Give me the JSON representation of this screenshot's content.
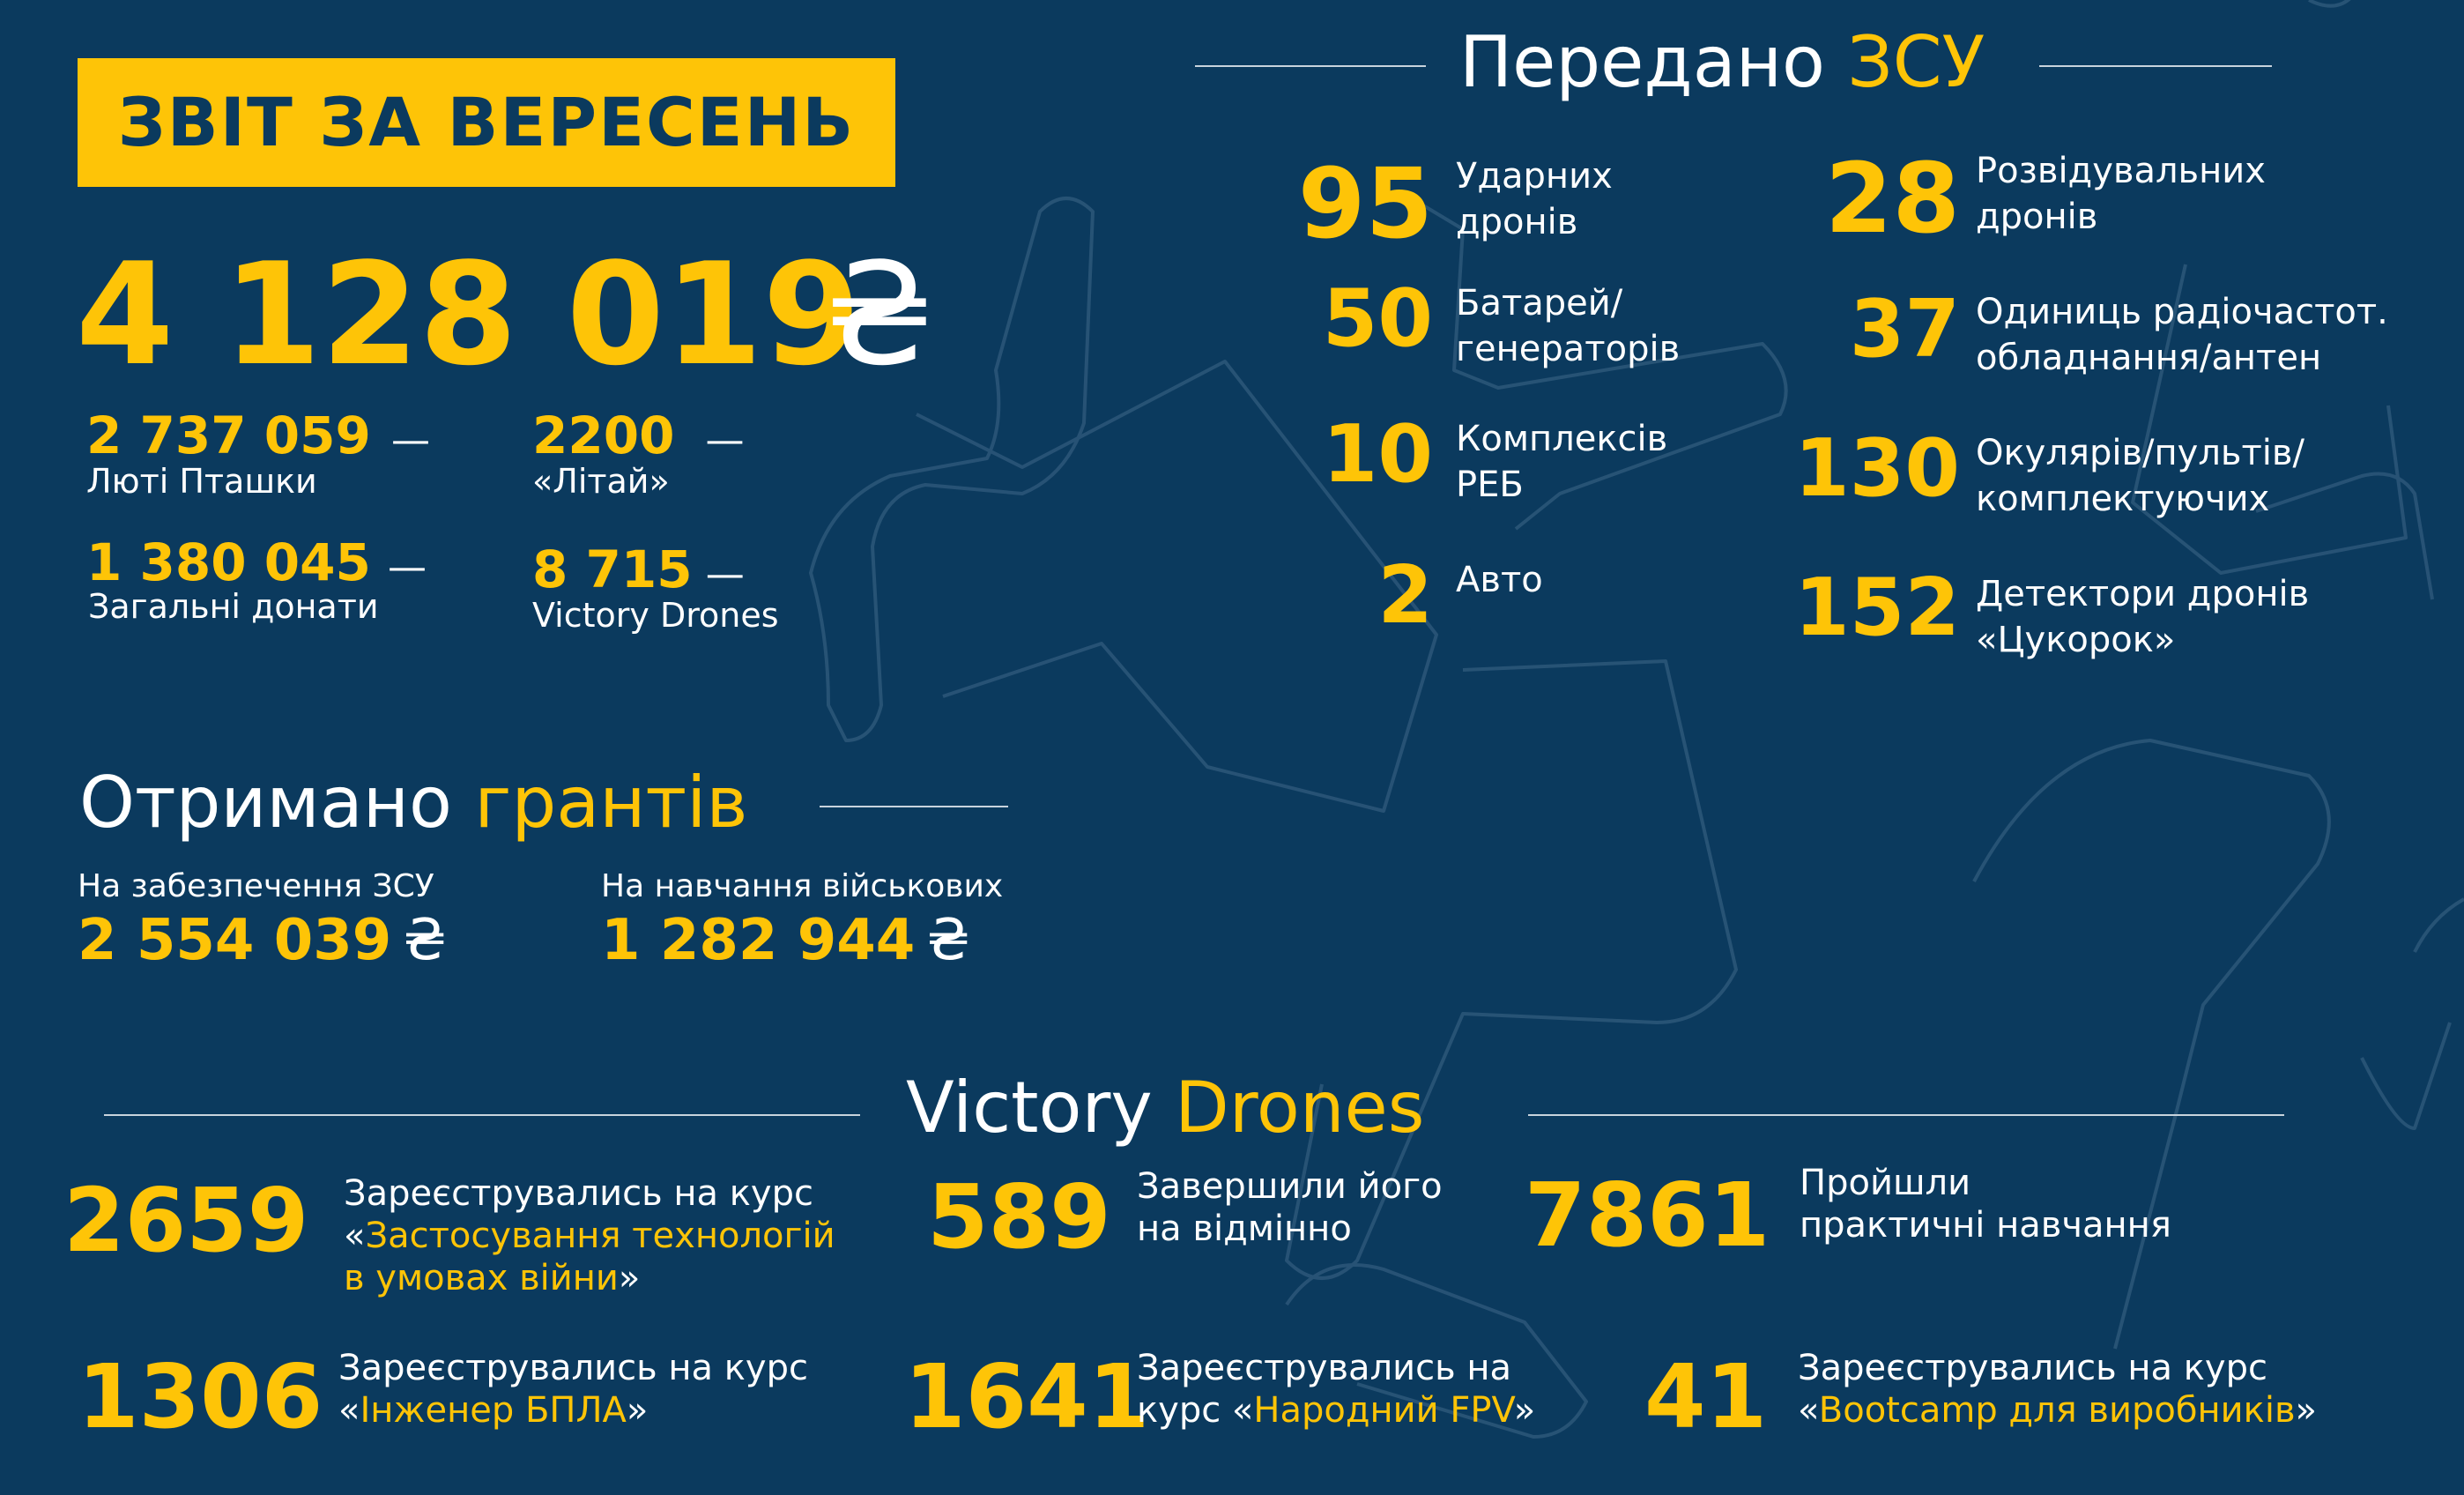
{
  "header": {
    "title": "ЗВІТ ЗА ВЕРЕСЕНЬ",
    "total": "4 128 019",
    "currency": "₴"
  },
  "sources": [
    {
      "value": "2 737 059",
      "label": "Люті Пташки"
    },
    {
      "value": "2200",
      "label": "«Літай»"
    },
    {
      "value": "1 380 045",
      "label": "Загальні донати"
    },
    {
      "value": "8 715",
      "label": "Victory Drones"
    }
  ],
  "dash": "—",
  "grants": {
    "title_white": "Отримано",
    "title_yellow": "грантів",
    "items": [
      {
        "label": "На забезпечення ЗСУ",
        "value": "2 554 039",
        "currency": "₴"
      },
      {
        "label": "На навчання військових",
        "value": "1 282 944",
        "currency": "₴"
      }
    ]
  },
  "zsu": {
    "title_white": "Передано",
    "title_yellow": "ЗСУ",
    "left": [
      {
        "value": "95",
        "line1": "Ударних",
        "line2": "дронів"
      },
      {
        "value": "50",
        "line1": "Батарей/",
        "line2": "генераторів"
      },
      {
        "value": "10",
        "line1": "Комплексів",
        "line2": "РЕБ"
      },
      {
        "value": "2",
        "line1": "Авто",
        "line2": ""
      }
    ],
    "right": [
      {
        "value": "28",
        "line1": "Розвідувальних",
        "line2": "дронів"
      },
      {
        "value": "37",
        "line1": "Одиниць радіочастот.",
        "line2": "обладнання/антен"
      },
      {
        "value": "130",
        "line1": "Окулярів/пультів/",
        "line2": "комплектуючих"
      },
      {
        "value": "152",
        "line1": "Детектори дронів",
        "line2": "«Цукорок»"
      }
    ]
  },
  "victory": {
    "title_white": "Victory",
    "title_yellow": "Drones",
    "stats": [
      {
        "value": "2659",
        "l1_white": "Зареєструвались на курс",
        "l2_pre": "«",
        "l2_yellow": "Застосування технологій",
        "l3_yellow": "в умовах війни",
        "l3_post": "»"
      },
      {
        "value": "589",
        "l1_white": "Завершили його",
        "l2_white": "на відмінно"
      },
      {
        "value": "7861",
        "l1_white": "Пройшли",
        "l2_white": "практичні навчання"
      },
      {
        "value": "1306",
        "l1_white": "Зареєструвались на курс",
        "l2_pre": "«",
        "l2_yellow": "Інженер БПЛА",
        "l2_post": "»"
      },
      {
        "value": "1641",
        "l1_white": "Зареєструвались на",
        "l2_pre": "курс «",
        "l2_yellow": "Народний FPV",
        "l2_post": "»"
      },
      {
        "value": "41",
        "l1_white": "Зареєструвались на курс",
        "l2_pre": "«",
        "l2_yellow": "Bootcamp для виробників",
        "l2_post": "»"
      }
    ]
  },
  "colors": {
    "background": "#0b3a5e",
    "accent": "#fec407",
    "text": "#ffffff"
  }
}
